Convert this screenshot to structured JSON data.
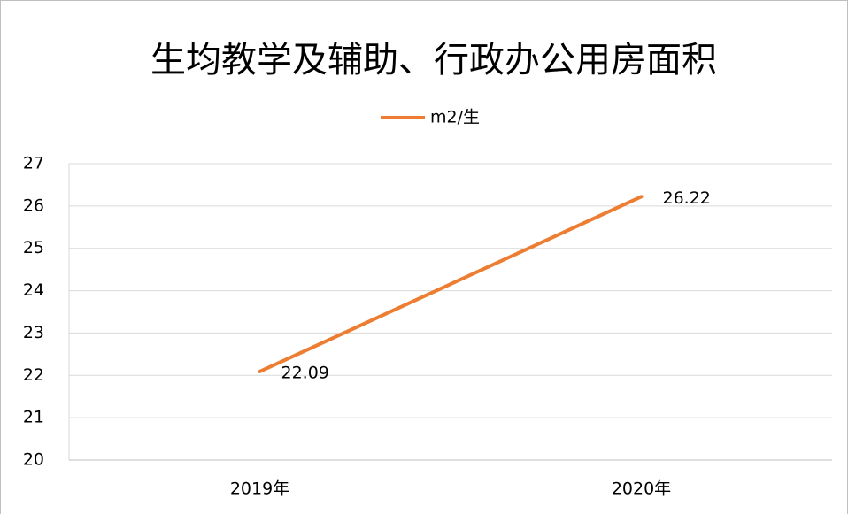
{
  "chart_data": {
    "type": "line",
    "title": "生均教学及辅助、行政办公用房面积",
    "categories": [
      "2019年",
      "2020年"
    ],
    "series": [
      {
        "name": "m2/生",
        "color": "#ed7d31",
        "values": [
          22.09,
          26.22
        ]
      }
    ],
    "ylim": [
      20,
      27
    ],
    "yticks": [
      20,
      21,
      22,
      23,
      24,
      25,
      26,
      27
    ],
    "grid": true,
    "legend": "top"
  }
}
